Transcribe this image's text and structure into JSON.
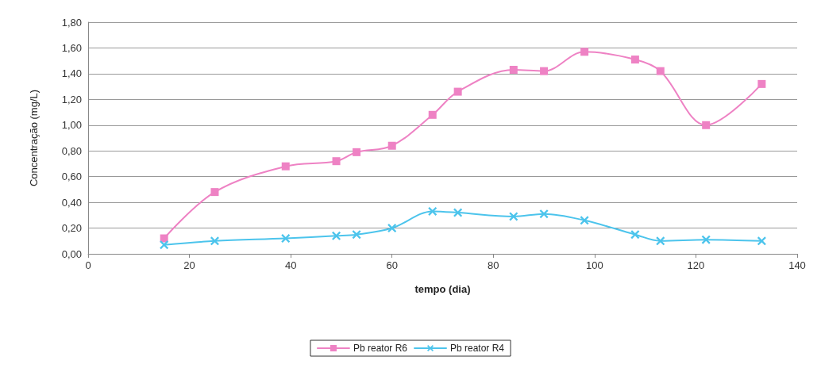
{
  "chart_data": {
    "type": "line",
    "xlabel": "tempo (dia)",
    "ylabel": "Concentração (mg/L)",
    "xlim": [
      0,
      140
    ],
    "xticks": [
      0,
      20,
      40,
      60,
      80,
      100,
      120,
      140
    ],
    "ylim": [
      0,
      1.8
    ],
    "yticks": [
      {
        "value": 0,
        "label": "0,00"
      },
      {
        "value": 0.2,
        "label": "0,20"
      },
      {
        "value": 0.4,
        "label": "0,40"
      },
      {
        "value": 0.6,
        "label": "0,60"
      },
      {
        "value": 0.8,
        "label": "0,80"
      },
      {
        "value": 1,
        "label": "1,00"
      },
      {
        "value": 1.2,
        "label": "1,20"
      },
      {
        "value": 1.4,
        "label": "1,40"
      },
      {
        "value": 1.6,
        "label": "1,60"
      },
      {
        "value": 1.8,
        "label": "1,80"
      }
    ],
    "grid": "y",
    "legend": "bottom",
    "x": [
      15,
      25,
      39,
      49,
      53,
      60,
      68,
      73,
      84,
      90,
      98,
      108,
      113,
      122,
      133
    ],
    "series": [
      {
        "name": "Pb reator R6",
        "color": "#ee82c4",
        "marker": "square",
        "values": [
          0.12,
          0.48,
          0.68,
          0.72,
          0.79,
          0.84,
          1.08,
          1.26,
          1.43,
          1.42,
          1.57,
          1.51,
          1.42,
          1.0,
          1.32
        ]
      },
      {
        "name": "Pb reator R4",
        "color": "#4cc4ec",
        "marker": "cross",
        "values": [
          0.07,
          0.1,
          0.12,
          0.14,
          0.15,
          0.2,
          0.33,
          0.32,
          0.29,
          0.31,
          0.26,
          0.15,
          0.1,
          0.11,
          0.1
        ]
      }
    ]
  }
}
